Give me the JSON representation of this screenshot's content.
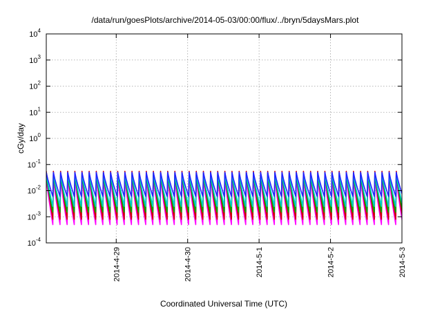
{
  "chart_data": {
    "type": "line",
    "title": "/data/run/goesPlots/archive/2014-05-03/00:00/flux/../bryn/5daysMars.plot",
    "xlabel": "Coordinated Universal Time (UTC)",
    "ylabel": "cGy/day",
    "yscale": "log",
    "ylim": [
      0.0001,
      10000
    ],
    "xlim": [
      "2014-04-28T00:30",
      "2014-05-03T00:00"
    ],
    "grid": true,
    "legend": "none",
    "y_ticks": [
      {
        "base": "10",
        "exp": "-4",
        "value": 0.0001
      },
      {
        "base": "10",
        "exp": "-3",
        "value": 0.001
      },
      {
        "base": "10",
        "exp": "-2",
        "value": 0.01
      },
      {
        "base": "10",
        "exp": "-1",
        "value": 0.1
      },
      {
        "base": "10",
        "exp": "0",
        "value": 1
      },
      {
        "base": "10",
        "exp": "1",
        "value": 10
      },
      {
        "base": "10",
        "exp": "2",
        "value": 100
      },
      {
        "base": "10",
        "exp": "3",
        "value": 1000
      },
      {
        "base": "10",
        "exp": "4",
        "value": 10000
      }
    ],
    "x_ticks": [
      {
        "label": "2014-4-29",
        "value": "2014-04-29T00:00"
      },
      {
        "label": "2014-4-30",
        "value": "2014-04-30T00:00"
      },
      {
        "label": "2014-5-1",
        "value": "2014-05-01T00:00"
      },
      {
        "label": "2014-5-2",
        "value": "2014-05-02T00:00"
      },
      {
        "label": "2014-5-3",
        "value": "2014-05-03T00:00"
      }
    ],
    "pattern": {
      "description": "periodic sawtooth dose rates (~2.4 h period): sharp rise then decay",
      "period_hours": 2.4,
      "first_peak": "2014-04-28T00:30"
    },
    "series": [
      {
        "color": "#ff00ff",
        "peak": 0.03,
        "trough": 0.0005
      },
      {
        "color": "#cc0000",
        "peak": 0.055,
        "trough": 0.0008
      },
      {
        "color": "#00aa00",
        "peak": 0.04,
        "trough": 0.0015
      },
      {
        "color": "#00cccc",
        "peak": 0.045,
        "trough": 0.0025
      },
      {
        "color": "#2222ff",
        "peak": 0.05,
        "trough": 0.006
      }
    ]
  }
}
